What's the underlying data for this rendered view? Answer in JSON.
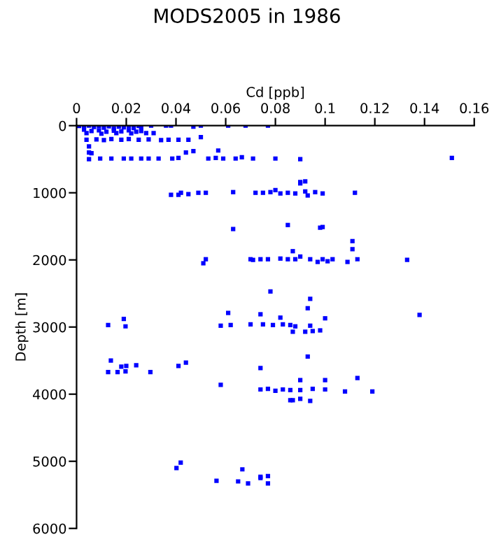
{
  "chart_data": {
    "type": "scatter",
    "title": "MODS2005 in 1986",
    "xlabel": "Cd [ppb]",
    "ylabel": "Depth [m]",
    "xlim": [
      0,
      0.16
    ],
    "xticks": [
      0,
      0.02,
      0.04,
      0.06,
      0.08,
      0.1,
      0.12,
      0.14,
      0.16
    ],
    "ylim": [
      6000,
      0
    ],
    "yticks": [
      0,
      1000,
      2000,
      3000,
      4000,
      5000,
      6000
    ],
    "grid": false,
    "legend": false,
    "marker": "square",
    "series": [
      {
        "color": "#0000ff",
        "x": [
          0.001,
          0.003,
          0.005,
          0.007,
          0.009,
          0.011,
          0.013,
          0.015,
          0.017,
          0.019,
          0.021,
          0.023,
          0.025,
          0.026,
          0.03,
          0.036,
          0.038,
          0.047,
          0.05,
          0.061,
          0.068,
          0.077,
          0.003,
          0.006,
          0.009,
          0.012,
          0.015,
          0.018,
          0.021,
          0.024,
          0.026,
          0.004,
          0.01,
          0.016,
          0.022,
          0.028,
          0.031,
          0.05,
          0.004,
          0.008,
          0.011,
          0.014,
          0.018,
          0.021,
          0.025,
          0.029,
          0.034,
          0.037,
          0.041,
          0.045,
          0.005,
          0.005,
          0.006,
          0.044,
          0.047,
          0.057,
          0.005,
          0.0095,
          0.014,
          0.019,
          0.022,
          0.026,
          0.029,
          0.033,
          0.0385,
          0.041,
          0.053,
          0.056,
          0.059,
          0.064,
          0.0665,
          0.071,
          0.08,
          0.09,
          0.151,
          0.09,
          0.092,
          0.09,
          0.038,
          0.041,
          0.042,
          0.045,
          0.049,
          0.052,
          0.063,
          0.072,
          0.075,
          0.078,
          0.08,
          0.082,
          0.085,
          0.088,
          0.092,
          0.093,
          0.096,
          0.099,
          0.112,
          0.063,
          0.085,
          0.098,
          0.099,
          0.111,
          0.111,
          0.087,
          0.051,
          0.052,
          0.07,
          0.071,
          0.074,
          0.077,
          0.082,
          0.085,
          0.088,
          0.09,
          0.094,
          0.097,
          0.099,
          0.101,
          0.103,
          0.109,
          0.113,
          0.133,
          0.078,
          0.094,
          0.093,
          0.061,
          0.074,
          0.138,
          0.082,
          0.019,
          0.1,
          0.0127,
          0.0197,
          0.058,
          0.062,
          0.07,
          0.075,
          0.079,
          0.083,
          0.086,
          0.088,
          0.094,
          0.087,
          0.092,
          0.095,
          0.098,
          0.093,
          0.0138,
          0.044,
          0.018,
          0.02,
          0.024,
          0.041,
          0.074,
          0.0127,
          0.0165,
          0.0197,
          0.0297,
          0.09,
          0.1,
          0.113,
          0.058,
          0.074,
          0.077,
          0.08,
          0.083,
          0.086,
          0.09,
          0.095,
          0.1,
          0.108,
          0.119,
          0.086,
          0.087,
          0.09,
          0.094,
          0.0419,
          0.0402,
          0.0667,
          0.074,
          0.077,
          0.074,
          0.0563,
          0.065,
          0.069,
          0.077
        ],
        "values": [
          5,
          10,
          0,
          20,
          5,
          30,
          10,
          40,
          15,
          25,
          10,
          35,
          5,
          20,
          0,
          0,
          0,
          15,
          0,
          0,
          0,
          0,
          60,
          80,
          70,
          90,
          75,
          85,
          70,
          90,
          80,
          110,
          120,
          110,
          115,
          110,
          110,
          170,
          210,
          205,
          215,
          200,
          210,
          200,
          210,
          205,
          215,
          210,
          210,
          210,
          310,
          400,
          410,
          400,
          380,
          370,
          500,
          490,
          490,
          490,
          490,
          490,
          490,
          490,
          490,
          480,
          490,
          480,
          490,
          490,
          470,
          490,
          490,
          500,
          480,
          840,
          830,
          860,
          1030,
          1030,
          1000,
          1020,
          1000,
          1000,
          990,
          1000,
          1000,
          990,
          960,
          1010,
          1000,
          1010,
          980,
          1040,
          990,
          1010,
          1000,
          1540,
          1480,
          1520,
          1510,
          1720,
          1840,
          1870,
          2050,
          1990,
          1990,
          2000,
          1990,
          1990,
          1980,
          1990,
          1990,
          1950,
          1990,
          2030,
          1990,
          2020,
          1990,
          2030,
          1990,
          2000,
          2470,
          2580,
          2720,
          2790,
          2810,
          2820,
          2860,
          2880,
          2870,
          2970,
          2990,
          2980,
          2970,
          2960,
          2960,
          2970,
          2960,
          2970,
          2990,
          2980,
          3070,
          3070,
          3060,
          3050,
          3440,
          3500,
          3530,
          3590,
          3580,
          3570,
          3580,
          3610,
          3670,
          3670,
          3660,
          3670,
          3790,
          3790,
          3760,
          3860,
          3930,
          3920,
          3950,
          3930,
          3940,
          3940,
          3920,
          3930,
          3960,
          3960,
          4090,
          4090,
          4070,
          4100,
          5020,
          5100,
          5120,
          5230,
          5220,
          5250,
          5290,
          5300,
          5330,
          5330
        ]
      }
    ]
  }
}
